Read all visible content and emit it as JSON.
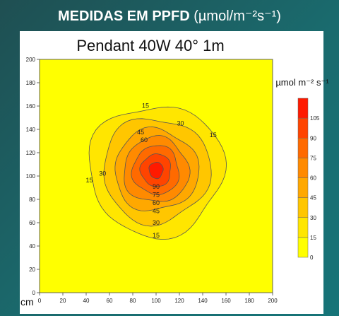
{
  "header": {
    "title_bold": "MEDIDAS EM PPFD",
    "title_units": "(µmol/m⁻²s⁻¹)"
  },
  "chart_data": {
    "type": "heatmap",
    "title": "Pendant 40W 40° 1m",
    "axis_unit": "cm",
    "x_ticks": [
      0,
      20,
      40,
      60,
      80,
      100,
      120,
      140,
      160,
      180,
      200
    ],
    "y_ticks": [
      0,
      20,
      40,
      60,
      80,
      100,
      120,
      140,
      160,
      180,
      200
    ],
    "xlim": [
      0,
      200
    ],
    "ylim": [
      0,
      200
    ],
    "center": [
      100,
      105
    ],
    "peak_value": 110,
    "contour_levels": [
      15,
      30,
      45,
      60,
      75,
      90,
      105
    ],
    "contours": [
      {
        "level": 15,
        "rx": 58,
        "ry": 56,
        "labels": [
          "15",
          "15",
          "15",
          "15"
        ]
      },
      {
        "level": 30,
        "rx": 46,
        "ry": 45,
        "labels": [
          "30",
          "30",
          "30"
        ]
      },
      {
        "level": 45,
        "rx": 36,
        "ry": 35,
        "labels": [
          "45",
          "45"
        ]
      },
      {
        "level": 60,
        "rx": 28,
        "ry": 28,
        "labels": [
          "60",
          "60"
        ]
      },
      {
        "level": 75,
        "rx": 20,
        "ry": 21,
        "labels": [
          "75"
        ]
      },
      {
        "level": 90,
        "rx": 13,
        "ry": 14,
        "labels": [
          "90"
        ]
      },
      {
        "level": 105,
        "rx": 6,
        "ry": 7,
        "labels": []
      }
    ],
    "colorbar": {
      "title": "µmol m⁻² s⁻¹",
      "ticks": [
        "0",
        "15",
        "30",
        "45",
        "60",
        "75",
        "90",
        "105"
      ],
      "colors": [
        "#ffff00",
        "#ffe600",
        "#ffc600",
        "#ffa800",
        "#ff8a00",
        "#ff6a00",
        "#ff4400",
        "#ff1a00"
      ]
    },
    "background_color": "#ffff00",
    "grid": false
  }
}
